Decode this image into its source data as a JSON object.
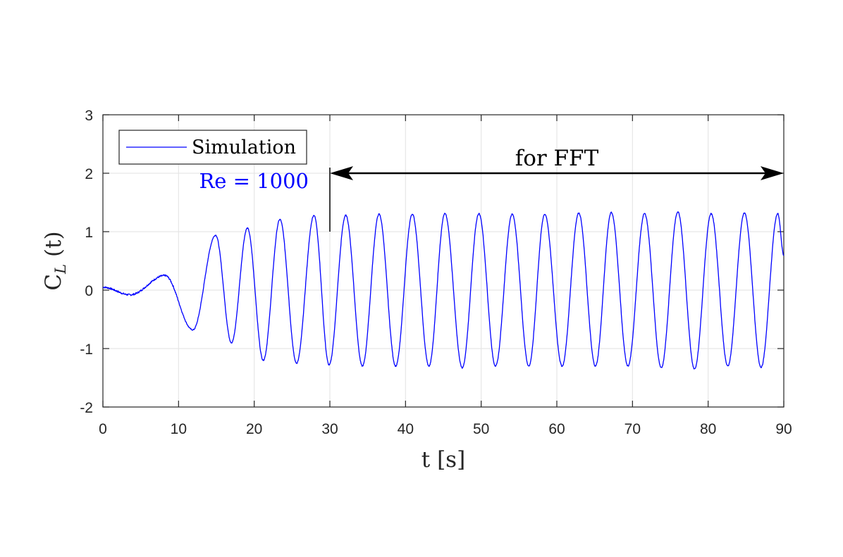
{
  "chart_data": {
    "type": "line",
    "xlabel": "t [s]",
    "ylabel_main": "C",
    "ylabel_sub": "L",
    "ylabel_suffix": " (t)",
    "xlim": [
      0,
      90
    ],
    "ylim": [
      -2,
      3
    ],
    "xticks": [
      0,
      10,
      20,
      30,
      40,
      50,
      60,
      70,
      80,
      90
    ],
    "yticks": [
      -2,
      -1,
      0,
      1,
      2,
      3
    ],
    "grid": true,
    "legend_position": "top-left",
    "series": [
      {
        "name": "Simulation",
        "color": "#0000ff",
        "peaks": [
          [
            0,
            0.05
          ],
          [
            3.6,
            -0.08
          ],
          [
            8.2,
            0.25
          ],
          [
            11.9,
            -0.68
          ],
          [
            14.9,
            0.94
          ],
          [
            17.0,
            -0.9
          ],
          [
            19.1,
            1.06
          ],
          [
            21.2,
            -1.2
          ],
          [
            23.4,
            1.21
          ],
          [
            25.6,
            -1.25
          ],
          [
            27.9,
            1.28
          ],
          [
            29.9,
            -1.28
          ],
          [
            32.1,
            1.28
          ],
          [
            34.3,
            -1.3
          ],
          [
            36.5,
            1.3
          ],
          [
            38.7,
            -1.3
          ],
          [
            40.9,
            1.3
          ],
          [
            43.1,
            -1.3
          ],
          [
            45.2,
            1.31
          ],
          [
            47.5,
            -1.33
          ],
          [
            49.7,
            1.31
          ],
          [
            51.9,
            -1.3
          ],
          [
            54.1,
            1.3
          ],
          [
            56.3,
            -1.3
          ],
          [
            58.4,
            1.3
          ],
          [
            60.7,
            -1.3
          ],
          [
            62.9,
            1.32
          ],
          [
            65.1,
            -1.3
          ],
          [
            67.2,
            1.33
          ],
          [
            69.4,
            -1.3
          ],
          [
            71.6,
            1.31
          ],
          [
            73.8,
            -1.33
          ],
          [
            76.0,
            1.34
          ],
          [
            78.2,
            -1.35
          ],
          [
            80.4,
            1.31
          ],
          [
            82.6,
            -1.3
          ],
          [
            84.8,
            1.32
          ],
          [
            87.0,
            -1.32
          ],
          [
            89.2,
            1.31
          ],
          [
            90,
            0.6
          ]
        ]
      }
    ],
    "annotations": {
      "label": "Re = 1000",
      "label_color": "#0000ff",
      "fft_text": "for FFT",
      "fft_range": [
        30,
        90
      ],
      "fft_arrow_y": 2,
      "marker_line_x": 30,
      "marker_line_y": [
        1,
        2
      ]
    }
  }
}
